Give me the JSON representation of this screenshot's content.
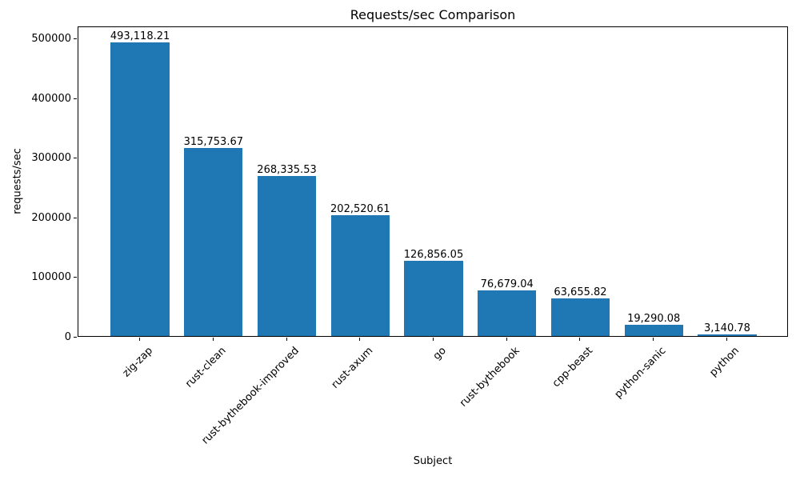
{
  "chart_data": {
    "type": "bar",
    "title": "Requests/sec Comparison",
    "xlabel": "Subject",
    "ylabel": "requests/sec",
    "categories": [
      "zig-zap",
      "rust-clean",
      "rust-bythebook-improved",
      "rust-axum",
      "go",
      "rust-bythebook",
      "cpp-beast",
      "python-sanic",
      "python"
    ],
    "values": [
      493118.21,
      315753.67,
      268335.53,
      202520.61,
      126856.05,
      76679.04,
      63655.82,
      19290.08,
      3140.78
    ],
    "value_labels": [
      "493,118.21",
      "315,753.67",
      "268,335.53",
      "202,520.61",
      "126,856.05",
      "76,679.04",
      "63,655.82",
      "19,290.08",
      "3,140.78"
    ],
    "ytick_values": [
      0,
      100000,
      200000,
      300000,
      400000,
      500000
    ],
    "ytick_labels": [
      "0",
      "100000",
      "200000",
      "300000",
      "400000",
      "500000"
    ],
    "ylim": [
      0,
      521500
    ],
    "xlim": [
      -0.84,
      8.84
    ],
    "bar_width": 0.8,
    "bar_color": "#1f77b4",
    "frame_color": "#000000",
    "text_color": "#000000",
    "grid": false,
    "legend": "none",
    "background_color": "#ffffff"
  }
}
